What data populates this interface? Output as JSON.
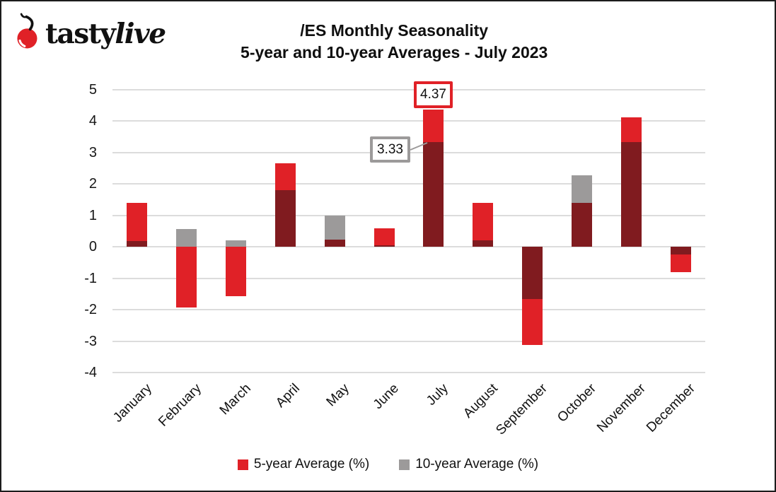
{
  "header": {
    "brand_first": "tasty",
    "brand_second": "live",
    "title_line1": "/ES Monthly Seasonality",
    "title_line2": "5-year and 10-year Averages - July 2023"
  },
  "colors": {
    "brand_red": "#e02127",
    "overlap_dark_red": "#801b1f",
    "gray": "#9c9a9a",
    "gridline": "#dcdcdc",
    "text": "#111111"
  },
  "chart_data": {
    "type": "bar",
    "title": "/ES Monthly Seasonality 5-year and 10-year Averages - July 2023",
    "categories": [
      "January",
      "February",
      "March",
      "April",
      "May",
      "June",
      "July",
      "August",
      "September",
      "October",
      "November",
      "December"
    ],
    "series": [
      {
        "name": "5-year Average (%)",
        "color": "#e02127",
        "values": [
          1.4,
          -1.93,
          -1.57,
          2.67,
          0.22,
          0.58,
          4.37,
          1.4,
          -3.13,
          1.41,
          4.12,
          -0.81
        ]
      },
      {
        "name": "10-year Average (%)",
        "color": "#9c9a9a",
        "values": [
          0.18,
          0.57,
          0.2,
          1.81,
          1.0,
          0.05,
          3.33,
          0.2,
          -1.66,
          2.28,
          3.34,
          -0.25
        ]
      }
    ],
    "overlap_color": "#801b1f",
    "bar_style": "overlapping",
    "xlabel": "",
    "ylabel": "",
    "ylim": [
      -4,
      5
    ],
    "yticks": [
      5,
      4,
      3,
      2,
      1,
      0,
      -1,
      -2,
      -3,
      -4
    ],
    "grid": "horizontal",
    "legend_position": "bottom",
    "callouts": [
      {
        "label": "4.37",
        "month": "July",
        "series": "5-year Average (%)",
        "border_color": "#e02127"
      },
      {
        "label": "3.33",
        "month": "July",
        "series": "10-year Average (%)",
        "border_color": "#9c9a9a"
      }
    ]
  }
}
